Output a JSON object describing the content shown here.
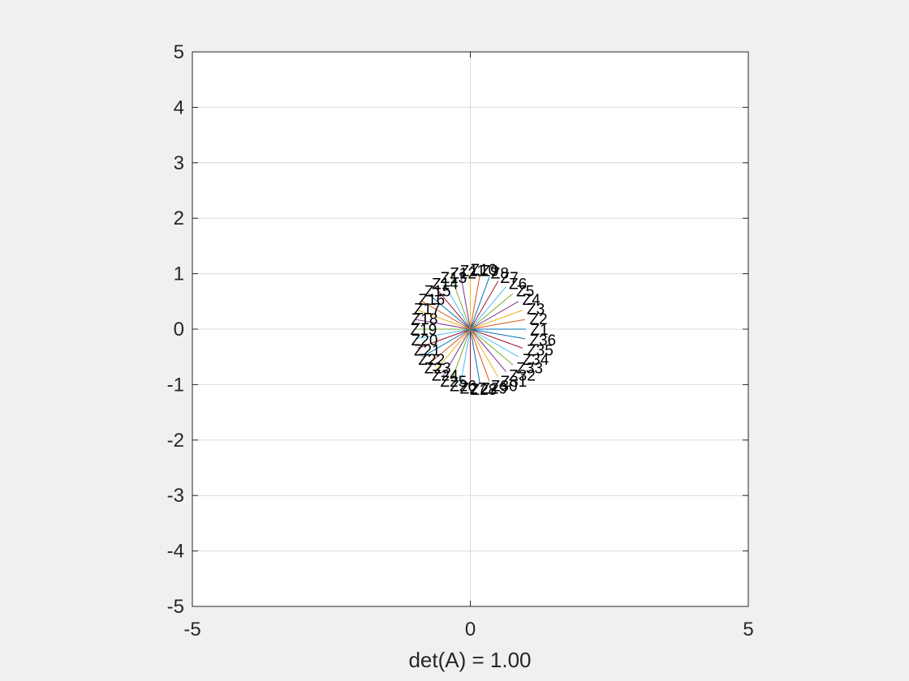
{
  "chart_data": {
    "type": "line",
    "title": "",
    "xlabel": "det(A) = 1.00",
    "ylabel": "",
    "xlim": [
      -5,
      5
    ],
    "ylim": [
      -5,
      5
    ],
    "grid": true,
    "axis_equal": true,
    "x_ticks": [
      "-5",
      "0",
      "5"
    ],
    "y_ticks": [
      "5",
      "4",
      "3",
      "2",
      "1",
      "0",
      "-1",
      "-2",
      "-3",
      "-4",
      "-5"
    ],
    "vector_label_prefix": "Z",
    "vector_labels": [
      "Z1",
      "Z2",
      "Z3",
      "Z4",
      "Z5",
      "Z6",
      "Z7",
      "Z8",
      "Z9",
      "Z10",
      "Z11",
      "Z12",
      "Z13",
      "Z14",
      "Z15",
      "Z16",
      "Z17",
      "Z18",
      "Z19",
      "Z20",
      "Z21",
      "Z22",
      "Z23",
      "Z24",
      "Z25",
      "Z26",
      "Z27",
      "Z28",
      "Z29",
      "Z30",
      "Z31",
      "Z32",
      "Z33",
      "Z34",
      "Z35",
      "Z36"
    ],
    "vectors": [
      {
        "angle_deg": 0,
        "length": 1
      },
      {
        "angle_deg": 10,
        "length": 1
      },
      {
        "angle_deg": 20,
        "length": 1
      },
      {
        "angle_deg": 30,
        "length": 1
      },
      {
        "angle_deg": 40,
        "length": 1
      },
      {
        "angle_deg": 50,
        "length": 1
      },
      {
        "angle_deg": 60,
        "length": 1
      },
      {
        "angle_deg": 70,
        "length": 1
      },
      {
        "angle_deg": 80,
        "length": 1
      },
      {
        "angle_deg": 90,
        "length": 1
      },
      {
        "angle_deg": 100,
        "length": 1
      },
      {
        "angle_deg": 110,
        "length": 1
      },
      {
        "angle_deg": 120,
        "length": 1
      },
      {
        "angle_deg": 130,
        "length": 1
      },
      {
        "angle_deg": 140,
        "length": 1
      },
      {
        "angle_deg": 150,
        "length": 1
      },
      {
        "angle_deg": 160,
        "length": 1
      },
      {
        "angle_deg": 170,
        "length": 1
      },
      {
        "angle_deg": 180,
        "length": 1
      },
      {
        "angle_deg": 190,
        "length": 1
      },
      {
        "angle_deg": 200,
        "length": 1
      },
      {
        "angle_deg": 210,
        "length": 1
      },
      {
        "angle_deg": 220,
        "length": 1
      },
      {
        "angle_deg": 230,
        "length": 1
      },
      {
        "angle_deg": 240,
        "length": 1
      },
      {
        "angle_deg": 250,
        "length": 1
      },
      {
        "angle_deg": 260,
        "length": 1
      },
      {
        "angle_deg": 270,
        "length": 1
      },
      {
        "angle_deg": 280,
        "length": 1
      },
      {
        "angle_deg": 290,
        "length": 1
      },
      {
        "angle_deg": 300,
        "length": 1
      },
      {
        "angle_deg": 310,
        "length": 1
      },
      {
        "angle_deg": 320,
        "length": 1
      },
      {
        "angle_deg": 330,
        "length": 1
      },
      {
        "angle_deg": 340,
        "length": 1
      },
      {
        "angle_deg": 350,
        "length": 1
      }
    ],
    "series_colors": [
      "#0072BD",
      "#D95319",
      "#EDB120",
      "#7E2F8E",
      "#77AC30",
      "#4DBEEE",
      "#A2142F"
    ],
    "label_color": "#000000",
    "grid_color": "#dcdcdc",
    "axis_color": "#262626",
    "background_color": "#f0f0f0",
    "plot_area_color": "#ffffff"
  }
}
